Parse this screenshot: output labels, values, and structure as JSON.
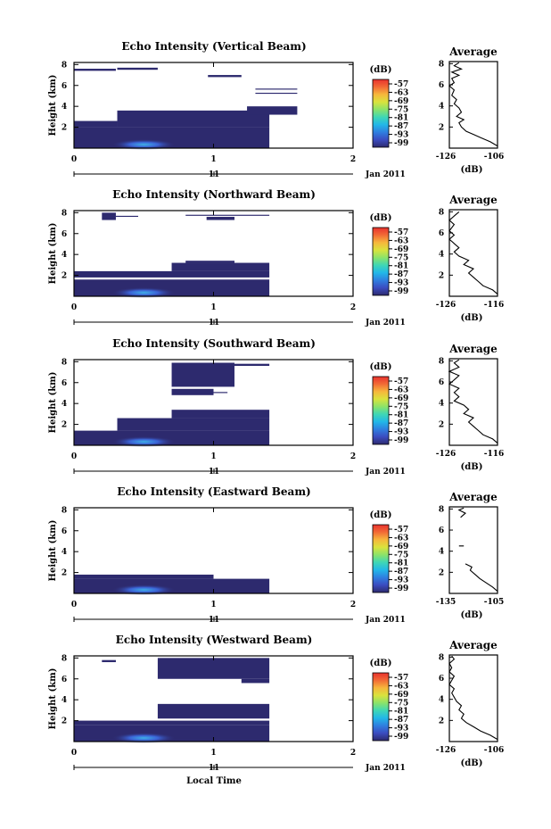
{
  "figure": {
    "xlabel": "Local Time",
    "colorbar_unit": "(dB)",
    "date_label": "Jan 2011",
    "day_label": "11",
    "avg_title": "Average",
    "avg_xlabel": "(dB)",
    "ylabel": "Height (km)"
  },
  "colormap": [
    "#2d2a6e",
    "#3b4cc0",
    "#2f7fe0",
    "#22b7e8",
    "#3fd7b5",
    "#8be36a",
    "#d9e33d",
    "#f6b73c",
    "#f26b36",
    "#e8322e"
  ],
  "colorbar_ticks": [
    "-57",
    "-63",
    "-69",
    "-75",
    "-81",
    "-87",
    "-93",
    "-99"
  ],
  "chart_data": [
    {
      "type": "heatmap",
      "title": "Echo Intensity (Vertical Beam)",
      "xlim": [
        0,
        2
      ],
      "xticks": [
        "0",
        "1",
        "2"
      ],
      "ylim": [
        0,
        8.2
      ],
      "yticks": [
        "2",
        "4",
        "6",
        "8"
      ],
      "bands": [
        {
          "x0": 0.0,
          "x1": 1.4,
          "y0": 0.0,
          "y1": 2.0
        },
        {
          "x0": 0.0,
          "x1": 0.31,
          "y0": 2.0,
          "y1": 2.6
        },
        {
          "x0": 0.31,
          "x1": 1.4,
          "y0": 2.0,
          "y1": 3.6
        },
        {
          "x0": 0.0,
          "x1": 0.3,
          "y0": 7.4,
          "y1": 7.6
        },
        {
          "x0": 0.31,
          "x1": 0.6,
          "y0": 7.5,
          "y1": 7.7
        },
        {
          "x0": 1.3,
          "x1": 1.6,
          "y0": 5.2,
          "y1": 5.3
        },
        {
          "x0": 1.3,
          "x1": 1.6,
          "y0": 5.6,
          "y1": 5.7
        },
        {
          "x0": 1.24,
          "x1": 1.6,
          "y0": 3.2,
          "y1": 4.0
        },
        {
          "x0": 0.96,
          "x1": 1.2,
          "y0": 6.8,
          "y1": 7.0
        }
      ],
      "avg_xlim": [
        "-126",
        "-106"
      ],
      "avg_yticks": [
        "2",
        "4",
        "6",
        "8"
      ],
      "avg_profile": [
        [
          -106,
          0.2
        ],
        [
          -109,
          0.6
        ],
        [
          -113,
          1.0
        ],
        [
          -116,
          1.3
        ],
        [
          -119,
          1.6
        ],
        [
          -121,
          2.0
        ],
        [
          -122,
          2.4
        ],
        [
          -120,
          2.7
        ],
        [
          -123,
          3.0
        ],
        [
          -121,
          3.4
        ],
        [
          -122,
          3.8
        ],
        [
          -124,
          4.2
        ],
        [
          -123,
          4.6
        ],
        [
          -125,
          5.0
        ],
        [
          -124,
          5.5
        ],
        [
          -126,
          5.9
        ],
        [
          -124,
          6.2
        ],
        [
          -125,
          6.6
        ],
        [
          -122,
          6.9
        ],
        [
          -125,
          7.2
        ],
        [
          -121,
          7.5
        ],
        [
          -124,
          7.8
        ],
        [
          -122,
          8.1
        ]
      ]
    },
    {
      "type": "heatmap",
      "title": "Echo Intensity (Northward Beam)",
      "xlim": [
        0,
        2
      ],
      "xticks": [
        "0",
        "1",
        "2"
      ],
      "ylim": [
        0,
        8.2
      ],
      "yticks": [
        "2",
        "4",
        "6",
        "8"
      ],
      "bands": [
        {
          "x0": 0.0,
          "x1": 1.4,
          "y0": 0.0,
          "y1": 1.6
        },
        {
          "x0": 0.0,
          "x1": 1.4,
          "y0": 1.8,
          "y1": 2.4
        },
        {
          "x0": 0.7,
          "x1": 1.4,
          "y0": 2.4,
          "y1": 3.2
        },
        {
          "x0": 0.2,
          "x1": 0.3,
          "y0": 7.3,
          "y1": 8.0
        },
        {
          "x0": 0.3,
          "x1": 0.46,
          "y0": 7.6,
          "y1": 7.7
        },
        {
          "x0": 0.8,
          "x1": 1.4,
          "y0": 7.7,
          "y1": 7.8
        },
        {
          "x0": 0.95,
          "x1": 1.15,
          "y0": 7.3,
          "y1": 7.6
        },
        {
          "x0": 0.8,
          "x1": 1.15,
          "y0": 3.2,
          "y1": 3.4
        }
      ],
      "avg_xlim": [
        "-126",
        "-116"
      ],
      "avg_yticks": [
        "2",
        "4",
        "6",
        "8"
      ],
      "avg_profile": [
        [
          -116,
          0.2
        ],
        [
          -117,
          0.6
        ],
        [
          -119,
          1.0
        ],
        [
          -120,
          1.4
        ],
        [
          -121,
          1.8
        ],
        [
          -122,
          2.2
        ],
        [
          -121,
          2.6
        ],
        [
          -123,
          3.0
        ],
        [
          -122,
          3.4
        ],
        [
          -124,
          3.8
        ],
        [
          -125,
          4.2
        ],
        [
          -124,
          4.6
        ],
        [
          -125,
          5.0
        ],
        [
          -126,
          5.4
        ],
        [
          -125,
          5.8
        ],
        [
          -126,
          6.2
        ],
        [
          -125,
          6.8
        ],
        [
          -126,
          7.2
        ],
        [
          -125,
          7.6
        ],
        [
          -124,
          8.0
        ]
      ]
    },
    {
      "type": "heatmap",
      "title": "Echo Intensity (Southward Beam)",
      "xlim": [
        0,
        2
      ],
      "xticks": [
        "0",
        "1",
        "2"
      ],
      "ylim": [
        0,
        8.2
      ],
      "yticks": [
        "2",
        "4",
        "6",
        "8"
      ],
      "bands": [
        {
          "x0": 0.0,
          "x1": 1.4,
          "y0": 0.0,
          "y1": 1.4
        },
        {
          "x0": 0.31,
          "x1": 1.4,
          "y0": 1.4,
          "y1": 2.6
        },
        {
          "x0": 0.7,
          "x1": 1.4,
          "y0": 2.6,
          "y1": 3.4
        },
        {
          "x0": 0.7,
          "x1": 1.0,
          "y0": 4.8,
          "y1": 5.4
        },
        {
          "x0": 0.7,
          "x1": 1.15,
          "y0": 5.6,
          "y1": 7.9
        },
        {
          "x0": 1.0,
          "x1": 1.4,
          "y0": 7.6,
          "y1": 7.8
        },
        {
          "x0": 0.9,
          "x1": 1.1,
          "y0": 5.0,
          "y1": 5.1
        }
      ],
      "avg_xlim": [
        "-126",
        "-116"
      ],
      "avg_yticks": [
        "2",
        "4",
        "6",
        "8"
      ],
      "avg_profile": [
        [
          -116,
          0.2
        ],
        [
          -117,
          0.6
        ],
        [
          -119,
          1.0
        ],
        [
          -120,
          1.4
        ],
        [
          -121,
          1.8
        ],
        [
          -122,
          2.2
        ],
        [
          -121,
          2.6
        ],
        [
          -123,
          3.0
        ],
        [
          -122,
          3.4
        ],
        [
          -123,
          3.8
        ],
        [
          -125,
          4.2
        ],
        [
          -124,
          4.6
        ],
        [
          -125,
          5.0
        ],
        [
          -124,
          5.4
        ],
        [
          -126,
          5.8
        ],
        [
          -125,
          6.2
        ],
        [
          -124,
          6.6
        ],
        [
          -126,
          7.0
        ],
        [
          -124,
          7.4
        ],
        [
          -125,
          7.8
        ],
        [
          -124,
          8.1
        ]
      ]
    },
    {
      "type": "heatmap",
      "title": "Echo Intensity (Eastward Beam)",
      "xlim": [
        0,
        2
      ],
      "xticks": [
        "0",
        "1",
        "2"
      ],
      "ylim": [
        0,
        8.2
      ],
      "yticks": [
        "2",
        "4",
        "6",
        "8"
      ],
      "bands": [
        {
          "x0": 0.0,
          "x1": 1.4,
          "y0": 0.0,
          "y1": 1.4
        },
        {
          "x0": 0.0,
          "x1": 1.0,
          "y0": 1.4,
          "y1": 1.8
        }
      ],
      "avg_xlim": [
        "-135",
        "-105"
      ],
      "avg_yticks": [
        "2",
        "4",
        "6",
        "8"
      ],
      "avg_profile": [
        [
          -105,
          0.2
        ],
        [
          -108,
          0.6
        ],
        [
          -112,
          1.0
        ],
        [
          -116,
          1.4
        ],
        [
          -119,
          1.8
        ],
        [
          -122,
          2.2
        ],
        [
          -121,
          2.5
        ],
        [
          -125,
          2.8
        ],
        [
          null,
          3.0
        ],
        [
          -129,
          4.5
        ],
        [
          -126,
          4.5
        ],
        [
          null,
          5.0
        ],
        [
          -128,
          7.2
        ],
        [
          -125,
          7.6
        ],
        [
          -129,
          7.9
        ],
        [
          -126,
          8.1
        ]
      ]
    },
    {
      "type": "heatmap",
      "title": "Echo Intensity (Westward Beam)",
      "xlim": [
        0,
        2
      ],
      "xticks": [
        "0",
        "1",
        "2"
      ],
      "ylim": [
        0,
        8.2
      ],
      "yticks": [
        "2",
        "4",
        "6",
        "8"
      ],
      "bands": [
        {
          "x0": 0.0,
          "x1": 1.4,
          "y0": 0.0,
          "y1": 1.6
        },
        {
          "x0": 0.0,
          "x1": 1.4,
          "y0": 1.6,
          "y1": 2.0
        },
        {
          "x0": 0.6,
          "x1": 1.4,
          "y0": 2.2,
          "y1": 3.6
        },
        {
          "x0": 0.2,
          "x1": 0.3,
          "y0": 7.6,
          "y1": 7.8
        },
        {
          "x0": 0.6,
          "x1": 1.4,
          "y0": 6.0,
          "y1": 8.0
        },
        {
          "x0": 1.2,
          "x1": 1.4,
          "y0": 5.6,
          "y1": 6.0
        }
      ],
      "avg_xlim": [
        "-126",
        "-106"
      ],
      "avg_yticks": [
        "2",
        "4",
        "6",
        "8"
      ],
      "avg_profile": [
        [
          -106,
          0.2
        ],
        [
          -109,
          0.6
        ],
        [
          -113,
          1.0
        ],
        [
          -116,
          1.4
        ],
        [
          -119,
          1.8
        ],
        [
          -121,
          2.2
        ],
        [
          -120,
          2.6
        ],
        [
          -122,
          3.0
        ],
        [
          -121,
          3.4
        ],
        [
          -123,
          3.8
        ],
        [
          -124,
          4.2
        ],
        [
          -125,
          4.6
        ],
        [
          -124,
          5.0
        ],
        [
          -126,
          5.4
        ],
        [
          -125,
          5.8
        ],
        [
          -124,
          6.2
        ],
        [
          -126,
          6.6
        ],
        [
          -125,
          7.0
        ],
        [
          -126,
          7.4
        ],
        [
          -124,
          7.8
        ],
        [
          -125,
          8.1
        ]
      ]
    }
  ]
}
